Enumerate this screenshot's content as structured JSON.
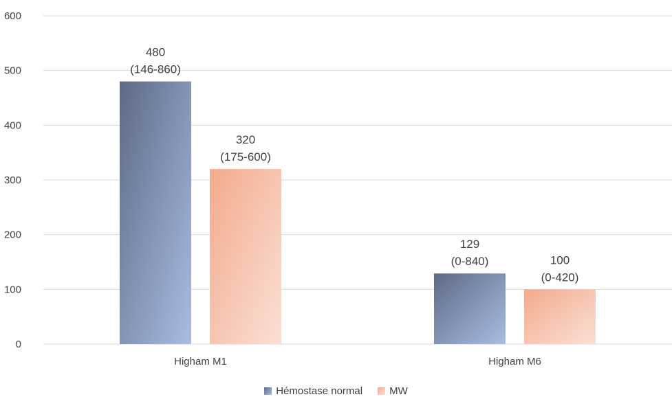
{
  "chart_data": {
    "type": "bar",
    "categories": [
      "Higham M1",
      "Higham M6"
    ],
    "series": [
      {
        "name": "Hémostase normal",
        "values": [
          480,
          129
        ],
        "labels": [
          [
            "480",
            "(146-860)"
          ],
          [
            "129",
            "(0-840)"
          ]
        ],
        "color_dark": "#5d6a86",
        "color_light": "#a9bde2"
      },
      {
        "name": "MW",
        "values": [
          320,
          100
        ],
        "labels": [
          [
            "320",
            "(175-600)"
          ],
          [
            "100",
            "(0-420)"
          ]
        ],
        "color_dark": "#f3aa8c",
        "color_light": "#fae0d5"
      }
    ],
    "ylim": [
      0,
      600
    ],
    "yticks": [
      "0",
      "100",
      "200",
      "300",
      "400",
      "500",
      "600"
    ],
    "grid": true,
    "legend_position": "bottom"
  }
}
